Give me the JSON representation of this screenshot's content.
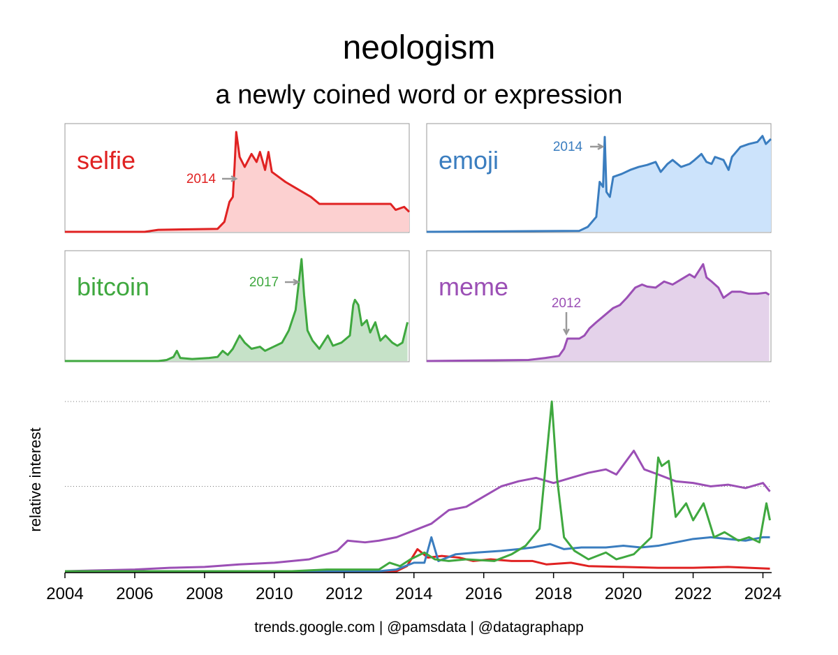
{
  "title": "neologism",
  "subtitle": "a newly coined word or expression",
  "footer": "trends.google.com | @pamsdata | @datagraphapp",
  "chart_data": [
    {
      "type": "area",
      "annotation": "2014",
      "xlim": [
        2004,
        2024.3
      ],
      "ylim": [
        0,
        100
      ],
      "series": [
        {
          "name": "selfie",
          "color": "#e02222",
          "fill": "#fcd0d0",
          "x": [
            2004,
            2008.7,
            2009.5,
            2013.0,
            2013.4,
            2013.7,
            2013.9,
            2014.0,
            2014.1,
            2014.3,
            2014.6,
            2015.0,
            2015.3,
            2015.5,
            2015.8,
            2016.0,
            2016.2,
            2016.6,
            2017.0,
            2017.5,
            2018.0,
            2018.5,
            2019.0,
            2020.0,
            2021.0,
            2022.0,
            2023.2,
            2023.5,
            2024.0,
            2024.3
          ],
          "values": [
            0,
            0,
            2,
            3,
            10,
            30,
            35,
            65,
            100,
            75,
            65,
            78,
            70,
            80,
            62,
            80,
            60,
            55,
            50,
            45,
            40,
            35,
            28,
            28,
            28,
            28,
            28,
            22,
            25,
            20
          ]
        }
      ]
    },
    {
      "type": "area",
      "annotation": "2014",
      "xlim": [
        2004,
        2024.3
      ],
      "ylim": [
        0,
        100
      ],
      "series": [
        {
          "name": "emoji",
          "color": "#3a7dbf",
          "fill": "#cce3fb",
          "x": [
            2004,
            2013.0,
            2013.5,
            2014.0,
            2014.2,
            2014.4,
            2014.5,
            2014.6,
            2014.8,
            2015.0,
            2015.5,
            2016.0,
            2016.5,
            2017.0,
            2017.5,
            2017.8,
            2018.2,
            2018.5,
            2019.0,
            2019.5,
            2019.8,
            2020.2,
            2020.5,
            2020.8,
            2021.0,
            2021.5,
            2021.8,
            2022.0,
            2022.5,
            2023.0,
            2023.5,
            2023.8,
            2024.0,
            2024.3
          ],
          "values": [
            0,
            1,
            5,
            15,
            50,
            45,
            95,
            40,
            35,
            55,
            58,
            62,
            65,
            67,
            70,
            60,
            68,
            72,
            65,
            68,
            72,
            78,
            70,
            68,
            75,
            72,
            62,
            75,
            85,
            88,
            90,
            96,
            88,
            93
          ]
        }
      ]
    },
    {
      "type": "area",
      "annotation": "2017",
      "xlim": [
        2004,
        2024.3
      ],
      "ylim": [
        0,
        100
      ],
      "series": [
        {
          "name": "bitcoin",
          "color": "#3fa83f",
          "fill": "#c6e2c8",
          "x": [
            2004,
            2009.5,
            2010.0,
            2010.4,
            2010.6,
            2010.8,
            2011.5,
            2012.5,
            2013.0,
            2013.3,
            2013.6,
            2013.9,
            2014.3,
            2014.6,
            2015.0,
            2015.5,
            2015.8,
            2016.3,
            2016.8,
            2017.2,
            2017.6,
            2017.95,
            2018.1,
            2018.3,
            2018.6,
            2019.0,
            2019.5,
            2019.8,
            2020.3,
            2020.8,
            2021.0,
            2021.1,
            2021.3,
            2021.5,
            2021.8,
            2022.0,
            2022.3,
            2022.6,
            2022.9,
            2023.3,
            2023.6,
            2023.9,
            2024.2
          ],
          "values": [
            0,
            0,
            1,
            4,
            10,
            3,
            2,
            3,
            4,
            10,
            6,
            12,
            25,
            18,
            12,
            14,
            10,
            14,
            18,
            30,
            50,
            100,
            65,
            30,
            20,
            12,
            25,
            15,
            18,
            25,
            55,
            60,
            55,
            35,
            40,
            28,
            38,
            20,
            25,
            18,
            15,
            18,
            38
          ]
        }
      ]
    },
    {
      "type": "area",
      "annotation": "2012",
      "xlim": [
        2004,
        2024.3
      ],
      "ylim": [
        0,
        100
      ],
      "series": [
        {
          "name": "meme",
          "color": "#9b4fb5",
          "fill": "#e4d2ea",
          "x": [
            2004,
            2010.0,
            2011.0,
            2011.8,
            2012.1,
            2012.3,
            2012.6,
            2013.0,
            2013.3,
            2013.6,
            2014.0,
            2014.5,
            2015.0,
            2015.4,
            2015.8,
            2016.3,
            2016.7,
            2017.0,
            2017.5,
            2018.0,
            2018.5,
            2019.0,
            2019.5,
            2019.8,
            2020.3,
            2020.5,
            2020.8,
            2021.2,
            2021.5,
            2022.0,
            2022.5,
            2023.0,
            2023.5,
            2024.0,
            2024.2
          ],
          "values": [
            0,
            1,
            3,
            5,
            12,
            22,
            22,
            22,
            25,
            32,
            38,
            45,
            52,
            55,
            62,
            72,
            75,
            73,
            72,
            78,
            75,
            80,
            85,
            82,
            95,
            82,
            78,
            72,
            62,
            68,
            68,
            66,
            66,
            67,
            65
          ]
        }
      ]
    },
    {
      "type": "line",
      "y_label": "relative interest",
      "xlim": [
        2004,
        2024.25
      ],
      "ylim": [
        0,
        100
      ],
      "xticks": [
        2004,
        2006,
        2008,
        2010,
        2012,
        2014,
        2016,
        2018,
        2020,
        2022,
        2024
      ],
      "ygrid": [
        50,
        100
      ],
      "series": [
        {
          "color": "#9b4fb5",
          "x": [
            2004,
            2006,
            2007,
            2008,
            2009,
            2010,
            2011,
            2011.8,
            2012.1,
            2012.6,
            2013,
            2013.5,
            2014,
            2014.5,
            2015,
            2015.5,
            2016,
            2016.5,
            2017,
            2017.5,
            2018,
            2018.5,
            2019,
            2019.5,
            2019.8,
            2020.3,
            2020.6,
            2021,
            2021.5,
            2022,
            2022.5,
            2023,
            2023.5,
            2024,
            2024.2
          ],
          "values": [
            0,
            1,
            2,
            2.5,
            4,
            5,
            7,
            12,
            18,
            17,
            18,
            20,
            24,
            28,
            36,
            38,
            44,
            50,
            53,
            55,
            52,
            55,
            58,
            60,
            57,
            71,
            60,
            57,
            53,
            52,
            50,
            51,
            49,
            52,
            47
          ]
        },
        {
          "color": "#e02222",
          "x": [
            2004,
            2013.5,
            2013.8,
            2014.1,
            2014.4,
            2014.8,
            2015.3,
            2015.7,
            2016.2,
            2016.8,
            2017.4,
            2017.8,
            2018.5,
            2019,
            2020,
            2021,
            2022,
            2023,
            2024.2
          ],
          "values": [
            0,
            0,
            3,
            13,
            8,
            9,
            8,
            6,
            7,
            6,
            6,
            4,
            5,
            3,
            2.5,
            2,
            2,
            2.5,
            1.5
          ]
        },
        {
          "color": "#3a7dbf",
          "x": [
            2004,
            2013,
            2013.5,
            2014.0,
            2014.3,
            2014.5,
            2014.7,
            2015.2,
            2015.8,
            2016.5,
            2017.0,
            2017.4,
            2017.9,
            2018.3,
            2018.8,
            2019.5,
            2020,
            2020.5,
            2021,
            2021.5,
            2022,
            2022.5,
            2023,
            2023.5,
            2024,
            2024.2
          ],
          "values": [
            0,
            0,
            1,
            5,
            5,
            20,
            6,
            10,
            11,
            12,
            13,
            14,
            16,
            13,
            14,
            14,
            15,
            14,
            15,
            17,
            19,
            20,
            19,
            18,
            20,
            20
          ]
        },
        {
          "color": "#3fa83f",
          "x": [
            2004,
            2009.5,
            2010.5,
            2011.5,
            2012.5,
            2013.0,
            2013.3,
            2013.6,
            2013.9,
            2014.3,
            2014.6,
            2015,
            2015.5,
            2016.3,
            2016.8,
            2017.2,
            2017.6,
            2017.95,
            2018.1,
            2018.3,
            2018.6,
            2019.0,
            2019.5,
            2019.8,
            2020.3,
            2020.8,
            2021.0,
            2021.1,
            2021.3,
            2021.5,
            2021.8,
            2022.0,
            2022.3,
            2022.6,
            2022.9,
            2023.3,
            2023.6,
            2023.9,
            2024.1,
            2024.2
          ],
          "values": [
            0,
            0,
            0,
            1,
            1,
            1,
            5,
            3,
            7,
            11,
            7,
            6,
            7,
            6,
            10,
            15,
            25,
            100,
            55,
            20,
            12,
            7,
            11,
            7,
            10,
            20,
            67,
            62,
            65,
            32,
            40,
            30,
            40,
            20,
            23,
            18,
            20,
            17,
            40,
            30
          ]
        }
      ]
    }
  ]
}
